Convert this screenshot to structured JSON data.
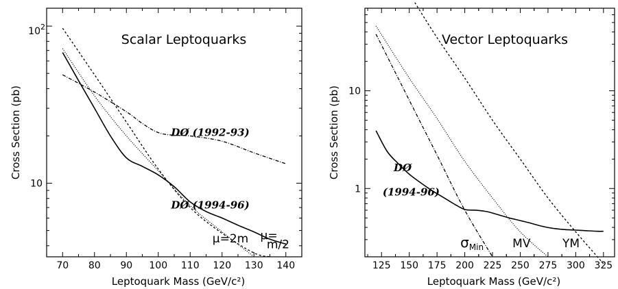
{
  "chart_data": [
    {
      "type": "line",
      "title": "Scalar Leptoquarks",
      "xlabel": "Leptoquark Mass (GeV/c²)",
      "ylabel": "Cross Section (pb)",
      "xlim": [
        65,
        145
      ],
      "ylim": [
        3.4,
        130
      ],
      "yscale": "log",
      "x_ticks": [
        70,
        80,
        90,
        100,
        110,
        120,
        130,
        140
      ],
      "y_tick_labels": [
        {
          "value": 10,
          "base": "10",
          "exp": ""
        },
        {
          "value": 100,
          "base": "10",
          "exp": "2"
        }
      ],
      "series": [
        {
          "name": "DØ (1994-96)",
          "style": "solid",
          "x": [
            70,
            75,
            80,
            85,
            90,
            95,
            100,
            105,
            110,
            115,
            120,
            125,
            130,
            135,
            140
          ],
          "y": [
            68,
            45,
            30,
            20,
            14.5,
            12.8,
            11.3,
            9.5,
            7.6,
            6.6,
            6.0,
            5.4,
            4.9,
            4.4,
            4.1
          ]
        },
        {
          "name": "DØ (1992-93)",
          "style": "dash-dot",
          "x": [
            70,
            80,
            90,
            95,
            100,
            105,
            110,
            120,
            130,
            140
          ],
          "y": [
            49,
            38,
            28.5,
            24,
            21,
            20.2,
            20,
            18.5,
            15.6,
            13.3
          ]
        },
        {
          "name": "",
          "style": "dashed",
          "x": [
            70,
            80,
            90,
            100,
            110,
            120,
            130,
            135
          ],
          "y": [
            97,
            49,
            24.5,
            12.3,
            7.0,
            4.8,
            3.6,
            3.4
          ]
        },
        {
          "name": "",
          "style": "dotted",
          "x": [
            70,
            80,
            90,
            100,
            110,
            120,
            130
          ],
          "y": [
            72,
            36,
            20,
            12,
            7.2,
            4.9,
            3.4
          ]
        }
      ],
      "annotations": [
        {
          "text": "DØ (1992-93)",
          "x": 104,
          "y": 20
        },
        {
          "text": "DØ (1994-96)",
          "x": 104,
          "y": 6.9
        },
        {
          "text": "μ=2m",
          "x": 117,
          "y": 4.2
        },
        {
          "text": "μ=",
          "x": 132,
          "y": 4.4
        },
        {
          "text": "m/2",
          "x": 134,
          "y": 3.85
        }
      ]
    },
    {
      "type": "line",
      "title": "Vector Leptoquarks",
      "xlabel": "Leptoquark Mass (GeV/c²)",
      "ylabel": "Cross Section (pb)",
      "xlim": [
        110,
        335
      ],
      "ylim": [
        0.2,
        70
      ],
      "yscale": "log",
      "x_ticks": [
        125,
        150,
        175,
        200,
        225,
        250,
        275,
        300,
        325
      ],
      "y_tick_labels": [
        {
          "value": 1,
          "base": "1",
          "exp": ""
        },
        {
          "value": 10,
          "base": "10",
          "exp": ""
        }
      ],
      "series": [
        {
          "name": "DØ (1994-96)",
          "style": "solid",
          "x": [
            120,
            130,
            140,
            150,
            160,
            170,
            180,
            190,
            200,
            210,
            220,
            230,
            240,
            250,
            260,
            270,
            280,
            290,
            300,
            310,
            320,
            325
          ],
          "y": [
            3.9,
            2.4,
            1.8,
            1.4,
            1.15,
            0.96,
            0.82,
            0.7,
            0.61,
            0.6,
            0.58,
            0.54,
            0.5,
            0.47,
            0.44,
            0.41,
            0.39,
            0.38,
            0.375,
            0.37,
            0.365,
            0.365
          ]
        },
        {
          "name": "σMin",
          "style": "dash-dot",
          "x": [
            120,
            150,
            175,
            200,
            225
          ],
          "y": [
            38,
            8,
            2.2,
            0.6,
            0.2
          ]
        },
        {
          "name": "MV",
          "style": "dotted",
          "x": [
            120,
            150,
            175,
            200,
            225,
            250,
            275
          ],
          "y": [
            46,
            13.5,
            5.2,
            1.9,
            0.8,
            0.36,
            0.2
          ]
        },
        {
          "name": "YM",
          "style": "dashed",
          "x": [
            155,
            175,
            200,
            225,
            250,
            275,
            300,
            325
          ],
          "y": [
            80,
            35,
            13.5,
            5.0,
            2.0,
            0.8,
            0.36,
            0.17
          ]
        }
      ],
      "annotations": [
        {
          "text": "DØ",
          "x": 136,
          "y": 1.5
        },
        {
          "text": "(1994-96)",
          "x": 126,
          "y": 0.85
        },
        {
          "text": "σ",
          "x": 196,
          "y": 0.25,
          "sub": "Min"
        },
        {
          "text": "MV",
          "x": 243,
          "y": 0.25
        },
        {
          "text": "YM",
          "x": 288,
          "y": 0.25
        }
      ]
    }
  ]
}
